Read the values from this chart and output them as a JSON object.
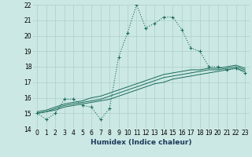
{
  "title": "",
  "xlabel": "Humidex (Indice chaleur)",
  "x_hours": [
    0,
    1,
    2,
    3,
    4,
    5,
    6,
    7,
    8,
    9,
    10,
    11,
    12,
    13,
    14,
    15,
    16,
    17,
    18,
    19,
    20,
    21,
    22,
    23
  ],
  "line_main": [
    15.0,
    14.6,
    15.0,
    15.9,
    15.9,
    15.5,
    15.4,
    14.6,
    15.3,
    18.6,
    20.2,
    22.0,
    20.5,
    20.8,
    21.2,
    21.2,
    20.4,
    19.2,
    19.0,
    18.0,
    18.0,
    17.8,
    17.9,
    17.6
  ],
  "line_avg1": [
    15.0,
    15.1,
    15.2,
    15.4,
    15.5,
    15.6,
    15.7,
    15.8,
    15.9,
    16.1,
    16.3,
    16.5,
    16.7,
    16.9,
    17.0,
    17.2,
    17.3,
    17.4,
    17.5,
    17.6,
    17.7,
    17.8,
    17.9,
    17.7
  ],
  "line_avg2": [
    15.0,
    15.1,
    15.3,
    15.5,
    15.6,
    15.7,
    15.8,
    15.9,
    16.1,
    16.3,
    16.5,
    16.7,
    16.9,
    17.1,
    17.3,
    17.4,
    17.5,
    17.6,
    17.7,
    17.8,
    17.8,
    17.9,
    18.0,
    17.8
  ],
  "line_avg3": [
    15.1,
    15.2,
    15.4,
    15.6,
    15.7,
    15.8,
    16.0,
    16.1,
    16.3,
    16.5,
    16.7,
    16.9,
    17.1,
    17.3,
    17.5,
    17.6,
    17.7,
    17.8,
    17.8,
    17.9,
    17.9,
    18.0,
    18.1,
    17.9
  ],
  "ylim": [
    14,
    22
  ],
  "yticks": [
    14,
    15,
    16,
    17,
    18,
    19,
    20,
    21,
    22
  ],
  "color_main": "#1a6b5a",
  "color_avg": "#1a6b5a",
  "bg_color": "#cce8e4",
  "grid_color": "#aacfcb",
  "xlabel_color": "#1a3a5a",
  "tick_fontsize": 5.5,
  "xlabel_fontsize": 6.5
}
